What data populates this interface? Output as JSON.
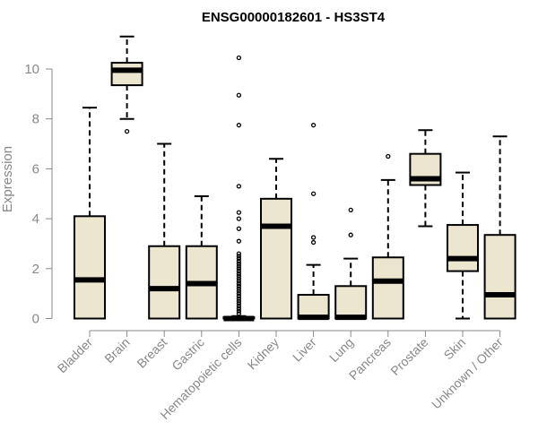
{
  "chart_data": {
    "type": "boxplot",
    "title": "ENSG00000182601 - HS3ST4",
    "xlabel": "",
    "ylabel": "Expression",
    "ylim": [
      0,
      11.5
    ],
    "yticks": [
      "0",
      "2",
      "4",
      "6",
      "8",
      "10"
    ],
    "categories": [
      "Bladder",
      "Brain",
      "Breast",
      "Gastric",
      "Hematopoietic cells",
      "Kidney",
      "Liver",
      "Lung",
      "Pancreas",
      "Prostate",
      "Skin",
      "Unknown / Other"
    ],
    "boxes": [
      {
        "name": "Bladder",
        "min": 0,
        "q1": 0,
        "median": 1.55,
        "q3": 4.1,
        "max": 8.45,
        "outliers": []
      },
      {
        "name": "Brain",
        "min": 8.0,
        "q1": 9.35,
        "median": 9.95,
        "q3": 10.25,
        "max": 11.3,
        "outliers": [
          7.5
        ]
      },
      {
        "name": "Breast",
        "min": 0,
        "q1": 0,
        "median": 1.2,
        "q3": 2.9,
        "max": 7.0,
        "outliers": []
      },
      {
        "name": "Gastric",
        "min": 0,
        "q1": 0,
        "median": 1.4,
        "q3": 2.9,
        "max": 4.9,
        "outliers": []
      },
      {
        "name": "Hematopoietic cells",
        "min": 0,
        "q1": 0,
        "median": 0.0,
        "q3": 0.05,
        "max": 0.1,
        "outliers": [
          10.45,
          8.95,
          7.75,
          5.3,
          4.25,
          4.0,
          3.6,
          3.1,
          2.6,
          2.5,
          2.4,
          2.3,
          2.2,
          2.1,
          2.0,
          1.9,
          1.8,
          1.7,
          1.6,
          1.5,
          1.4,
          1.3,
          1.2,
          1.1,
          1.0,
          0.9,
          0.8,
          0.7,
          0.6,
          0.5,
          0.4,
          0.3,
          0.2
        ]
      },
      {
        "name": "Kidney",
        "min": 0,
        "q1": 0,
        "median": 3.7,
        "q3": 4.8,
        "max": 6.4,
        "outliers": []
      },
      {
        "name": "Liver",
        "min": 0,
        "q1": 0,
        "median": 0.05,
        "q3": 0.95,
        "max": 2.15,
        "outliers": [
          7.75,
          5.0,
          3.25,
          3.05
        ]
      },
      {
        "name": "Lung",
        "min": 0,
        "q1": 0,
        "median": 0.05,
        "q3": 1.3,
        "max": 2.4,
        "outliers": [
          4.35,
          3.35
        ]
      },
      {
        "name": "Pancreas",
        "min": 0,
        "q1": 0,
        "median": 1.5,
        "q3": 2.45,
        "max": 5.55,
        "outliers": [
          6.5
        ]
      },
      {
        "name": "Prostate",
        "min": 3.7,
        "q1": 5.35,
        "median": 5.6,
        "q3": 6.6,
        "max": 7.55,
        "outliers": []
      },
      {
        "name": "Skin",
        "min": 0,
        "q1": 1.9,
        "median": 2.4,
        "q3": 3.75,
        "max": 5.85,
        "outliers": []
      },
      {
        "name": "Unknown / Other",
        "min": 0,
        "q1": 0,
        "median": 0.95,
        "q3": 3.35,
        "max": 7.3,
        "outliers": []
      }
    ]
  }
}
